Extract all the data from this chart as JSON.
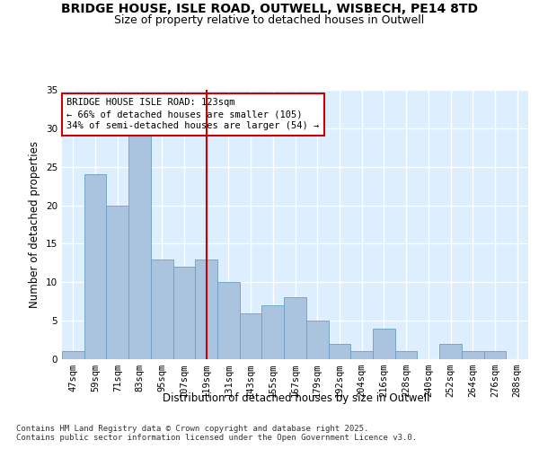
{
  "title_line1": "BRIDGE HOUSE, ISLE ROAD, OUTWELL, WISBECH, PE14 8TD",
  "title_line2": "Size of property relative to detached houses in Outwell",
  "xlabel": "Distribution of detached houses by size in Outwell",
  "ylabel": "Number of detached properties",
  "categories": [
    "47sqm",
    "59sqm",
    "71sqm",
    "83sqm",
    "95sqm",
    "107sqm",
    "119sqm",
    "131sqm",
    "143sqm",
    "155sqm",
    "167sqm",
    "179sqm",
    "192sqm",
    "204sqm",
    "216sqm",
    "228sqm",
    "240sqm",
    "252sqm",
    "264sqm",
    "276sqm",
    "288sqm"
  ],
  "values": [
    1,
    24,
    20,
    29,
    13,
    12,
    13,
    10,
    6,
    7,
    8,
    5,
    2,
    1,
    4,
    1,
    0,
    2,
    1,
    1,
    0
  ],
  "bar_color": "#aac4e0",
  "bar_edge_color": "#6a9fc0",
  "highlight_index": 6,
  "highlight_bar_color": "#aac4e0",
  "highlight_line_color": "#cc0000",
  "annotation_line1": "BRIDGE HOUSE ISLE ROAD: 123sqm",
  "annotation_line2": "← 66% of detached houses are smaller (105)",
  "annotation_line3": "34% of semi-detached houses are larger (54) →",
  "annotation_box_color": "#ffffff",
  "annotation_box_edge": "#cc0000",
  "ylim": [
    0,
    35
  ],
  "yticks": [
    0,
    5,
    10,
    15,
    20,
    25,
    30,
    35
  ],
  "bg_color": "#ddeeff",
  "fig_bg_color": "#ffffff",
  "grid_color": "#ffffff",
  "footer_text": "Contains HM Land Registry data © Crown copyright and database right 2025.\nContains public sector information licensed under the Open Government Licence v3.0.",
  "title_fontsize": 10,
  "subtitle_fontsize": 9,
  "axis_label_fontsize": 8.5,
  "tick_fontsize": 7.5,
  "annotation_fontsize": 7.5,
  "footer_fontsize": 6.5
}
